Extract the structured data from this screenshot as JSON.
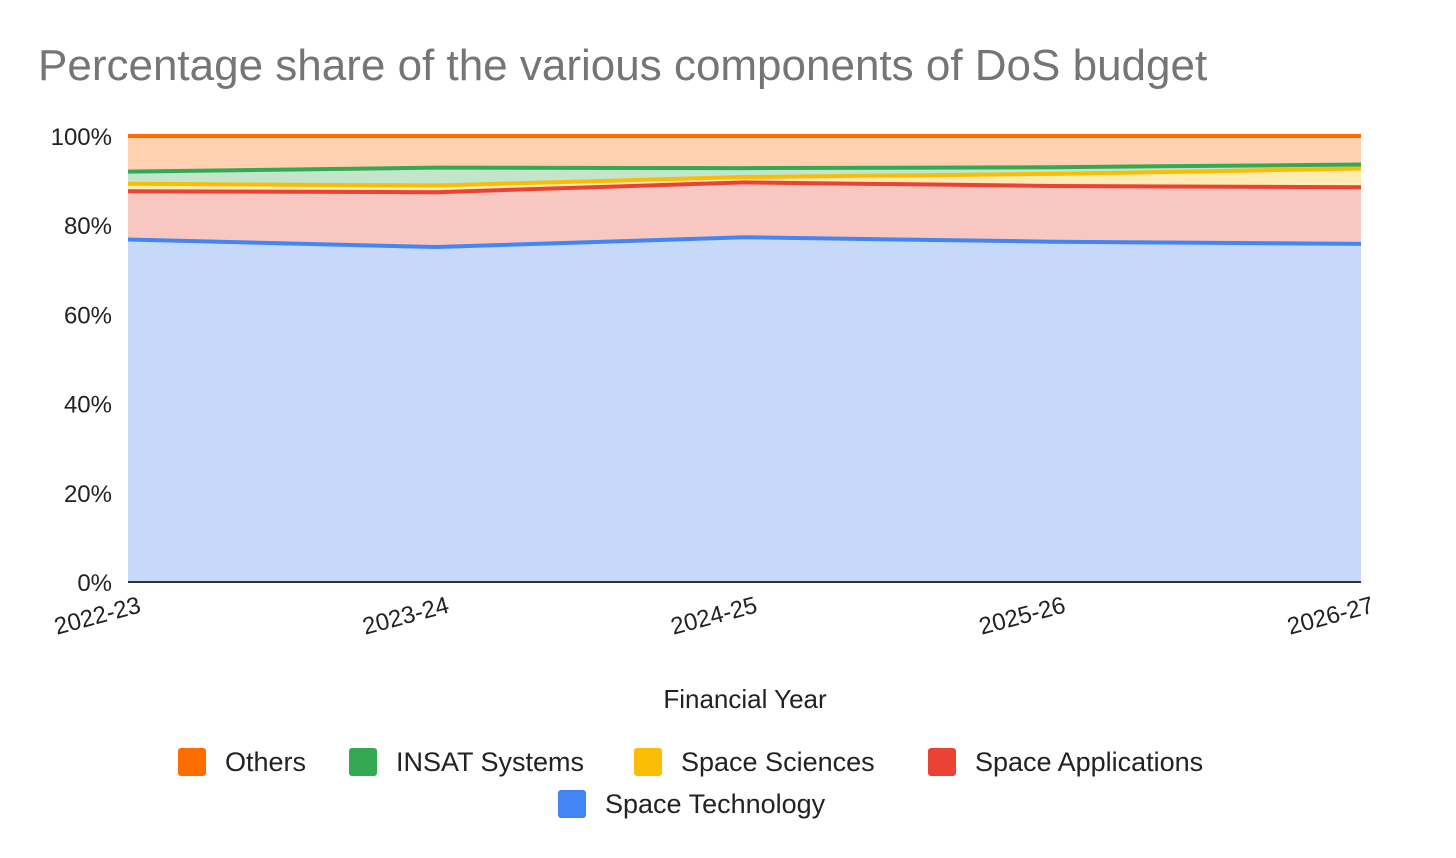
{
  "chart_data": {
    "type": "area",
    "stacked": "percent",
    "title": "Percentage share of the various components of DoS budget",
    "xlabel": "Financial Year",
    "ylabel": "",
    "categories": [
      "2022-23",
      "2023-24",
      "2024-25",
      "2025-26",
      "2026-27"
    ],
    "ylim": [
      0,
      100
    ],
    "yticks": [
      "0%",
      "20%",
      "40%",
      "60%",
      "80%",
      "100%"
    ],
    "grid": true,
    "legend_position": "bottom",
    "series": [
      {
        "name": "Space Technology",
        "color": "#4285f4",
        "fill": "#c6d9f9",
        "values": [
          76.8,
          75.1,
          77.3,
          76.3,
          75.8
        ]
      },
      {
        "name": "Space Applications",
        "color": "#ea4335",
        "fill": "#f9c7c2",
        "values": [
          10.8,
          12.3,
          12.3,
          12.5,
          12.7
        ]
      },
      {
        "name": "Space Sciences",
        "color": "#fbbc04",
        "fill": "#feebb4",
        "values": [
          1.7,
          1.5,
          1.2,
          2.7,
          4.2
        ]
      },
      {
        "name": "INSAT Systems",
        "color": "#34a853",
        "fill": "#c2e5cb",
        "values": [
          2.7,
          4.0,
          2.0,
          1.5,
          0.9
        ]
      },
      {
        "name": "Others",
        "color": "#ff6d01",
        "fill": "#ffd1b0",
        "values": [
          8.0,
          7.1,
          7.2,
          7.0,
          6.4
        ]
      }
    ],
    "legend_order": [
      "Others",
      "INSAT Systems",
      "Space Sciences",
      "Space Applications",
      "Space Technology"
    ]
  }
}
